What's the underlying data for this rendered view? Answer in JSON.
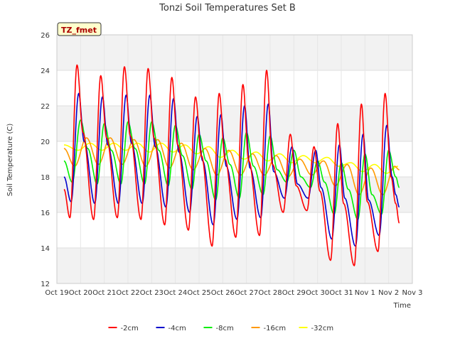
{
  "chart_data": {
    "type": "line",
    "title": "Tonzi Soil Temperatures Set B",
    "xlabel": "Time",
    "ylabel": "Soil Temperature (C)",
    "badge": "TZ_fmet",
    "ylim": [
      12,
      26
    ],
    "yticks": [
      12,
      14,
      16,
      18,
      20,
      22,
      24,
      26
    ],
    "xlim_days": [
      0,
      15
    ],
    "xticks": [
      {
        "day": 0,
        "label": "Oct 19"
      },
      {
        "day": 1,
        "label": "Oct 20"
      },
      {
        "day": 2,
        "label": "Oct 21"
      },
      {
        "day": 3,
        "label": "Oct 22"
      },
      {
        "day": 4,
        "label": "Oct 23"
      },
      {
        "day": 5,
        "label": "Oct 24"
      },
      {
        "day": 6,
        "label": "Oct 25"
      },
      {
        "day": 7,
        "label": "Oct 26"
      },
      {
        "day": 8,
        "label": "Oct 27"
      },
      {
        "day": 9,
        "label": "Oct 28"
      },
      {
        "day": 10,
        "label": "Oct 29"
      },
      {
        "day": 11,
        "label": "Oct 30"
      },
      {
        "day": 12,
        "label": "Oct 31"
      },
      {
        "day": 13,
        "label": "Nov 1"
      },
      {
        "day": 14,
        "label": "Nov 2"
      },
      {
        "day": 15,
        "label": "Nov 3"
      }
    ],
    "grid": true,
    "legend_position": "bottom",
    "series": [
      {
        "name": "-2cm",
        "color": "#ff0000",
        "x": [
          0.3,
          0.55,
          0.85,
          1.1,
          1.55,
          1.85,
          2.1,
          2.55,
          2.85,
          3.1,
          3.55,
          3.85,
          4.1,
          4.55,
          4.85,
          5.1,
          5.55,
          5.85,
          6.1,
          6.55,
          6.85,
          7.1,
          7.55,
          7.85,
          8.1,
          8.55,
          8.85,
          9.1,
          9.55,
          9.85,
          10.1,
          10.55,
          10.85,
          11.1,
          11.55,
          11.85,
          12.1,
          12.55,
          12.85,
          13.1,
          13.55,
          13.85,
          14.1,
          14.3,
          14.45
        ],
        "y": [
          17.3,
          15.7,
          24.3,
          20.5,
          15.6,
          23.7,
          20.2,
          15.7,
          24.2,
          20.3,
          15.6,
          24.1,
          20.2,
          15.3,
          23.6,
          19.8,
          15.0,
          22.5,
          19.2,
          14.1,
          22.7,
          19.0,
          14.6,
          23.2,
          18.9,
          14.7,
          24.0,
          18.7,
          16.0,
          20.4,
          17.5,
          16.1,
          19.7,
          17.2,
          13.3,
          21.0,
          16.5,
          13.0,
          22.1,
          16.6,
          13.8,
          22.7,
          18.0,
          16.5,
          15.4
        ]
      },
      {
        "name": "-4cm",
        "color": "#0000cc",
        "x": [
          0.3,
          0.6,
          0.92,
          1.15,
          1.6,
          1.92,
          2.15,
          2.6,
          2.92,
          3.15,
          3.6,
          3.92,
          4.15,
          4.6,
          4.92,
          5.15,
          5.6,
          5.92,
          6.15,
          6.6,
          6.92,
          7.15,
          7.6,
          7.92,
          8.15,
          8.6,
          8.92,
          9.15,
          9.6,
          9.92,
          10.15,
          10.6,
          10.92,
          11.15,
          11.6,
          11.92,
          12.15,
          12.6,
          12.92,
          13.15,
          13.6,
          13.92,
          14.15,
          14.3,
          14.45
        ],
        "y": [
          18.0,
          16.6,
          22.7,
          20.0,
          16.5,
          22.5,
          19.8,
          16.5,
          22.6,
          19.9,
          16.5,
          22.6,
          19.7,
          16.3,
          22.4,
          19.4,
          16.0,
          21.4,
          18.9,
          15.3,
          21.5,
          18.6,
          15.6,
          22.0,
          18.5,
          15.7,
          22.1,
          18.3,
          16.8,
          19.7,
          17.6,
          16.8,
          19.5,
          17.4,
          14.5,
          19.8,
          16.8,
          14.1,
          20.4,
          16.7,
          14.7,
          20.9,
          18.0,
          17.0,
          16.3
        ]
      },
      {
        "name": "-8cm",
        "color": "#00ee00",
        "x": [
          0.3,
          0.65,
          1.0,
          1.3,
          1.7,
          2.0,
          2.3,
          2.7,
          3.0,
          3.3,
          3.7,
          4.0,
          4.3,
          4.7,
          5.0,
          5.3,
          5.7,
          6.0,
          6.3,
          6.7,
          7.0,
          7.3,
          7.7,
          8.0,
          8.3,
          8.7,
          9.0,
          9.3,
          9.7,
          10.0,
          10.3,
          10.7,
          11.0,
          11.3,
          11.7,
          12.0,
          12.3,
          12.7,
          13.0,
          13.3,
          13.7,
          14.0,
          14.3,
          14.45
        ],
        "y": [
          18.9,
          17.7,
          21.2,
          19.6,
          17.6,
          21.0,
          19.5,
          17.6,
          21.1,
          19.6,
          17.6,
          21.1,
          19.5,
          17.5,
          20.9,
          19.2,
          17.3,
          20.4,
          18.9,
          16.7,
          20.2,
          18.7,
          16.8,
          20.5,
          18.6,
          17.0,
          20.3,
          18.4,
          17.7,
          19.5,
          18.0,
          17.4,
          18.9,
          17.7,
          15.9,
          18.8,
          17.3,
          15.6,
          19.3,
          17.0,
          15.9,
          19.5,
          18.0,
          17.4
        ]
      },
      {
        "name": "-16cm",
        "color": "#ff9900",
        "x": [
          0.3,
          0.75,
          1.25,
          1.75,
          2.25,
          2.75,
          3.25,
          3.75,
          4.25,
          4.75,
          5.25,
          5.75,
          6.25,
          6.75,
          7.25,
          7.75,
          8.25,
          8.75,
          9.25,
          9.75,
          10.25,
          10.75,
          11.25,
          11.75,
          12.25,
          12.75,
          13.25,
          13.75,
          14.25,
          14.45
        ],
        "y": [
          19.6,
          18.6,
          20.2,
          18.7,
          20.2,
          18.7,
          20.1,
          18.6,
          20.1,
          18.5,
          19.9,
          18.4,
          19.6,
          18.1,
          19.5,
          18.1,
          19.3,
          18.1,
          19.2,
          18.0,
          19.0,
          18.1,
          18.9,
          17.5,
          18.7,
          17.0,
          18.5,
          17.0,
          18.6,
          18.4
        ]
      },
      {
        "name": "-32cm",
        "color": "#ffff00",
        "x": [
          0.3,
          0.9,
          1.4,
          1.9,
          2.4,
          2.9,
          3.4,
          3.9,
          4.4,
          4.9,
          5.4,
          5.9,
          6.4,
          6.9,
          7.4,
          7.9,
          8.4,
          8.9,
          9.4,
          9.9,
          10.4,
          10.9,
          11.4,
          11.9,
          12.4,
          12.9,
          13.4,
          13.9,
          14.4
        ],
        "y": [
          19.8,
          19.5,
          19.9,
          19.5,
          19.9,
          19.5,
          19.9,
          19.4,
          19.9,
          19.4,
          19.8,
          19.3,
          19.7,
          19.1,
          19.5,
          19.0,
          19.4,
          18.9,
          19.3,
          18.8,
          19.2,
          18.8,
          19.1,
          18.6,
          18.8,
          18.3,
          18.7,
          18.2,
          18.6
        ]
      }
    ]
  }
}
